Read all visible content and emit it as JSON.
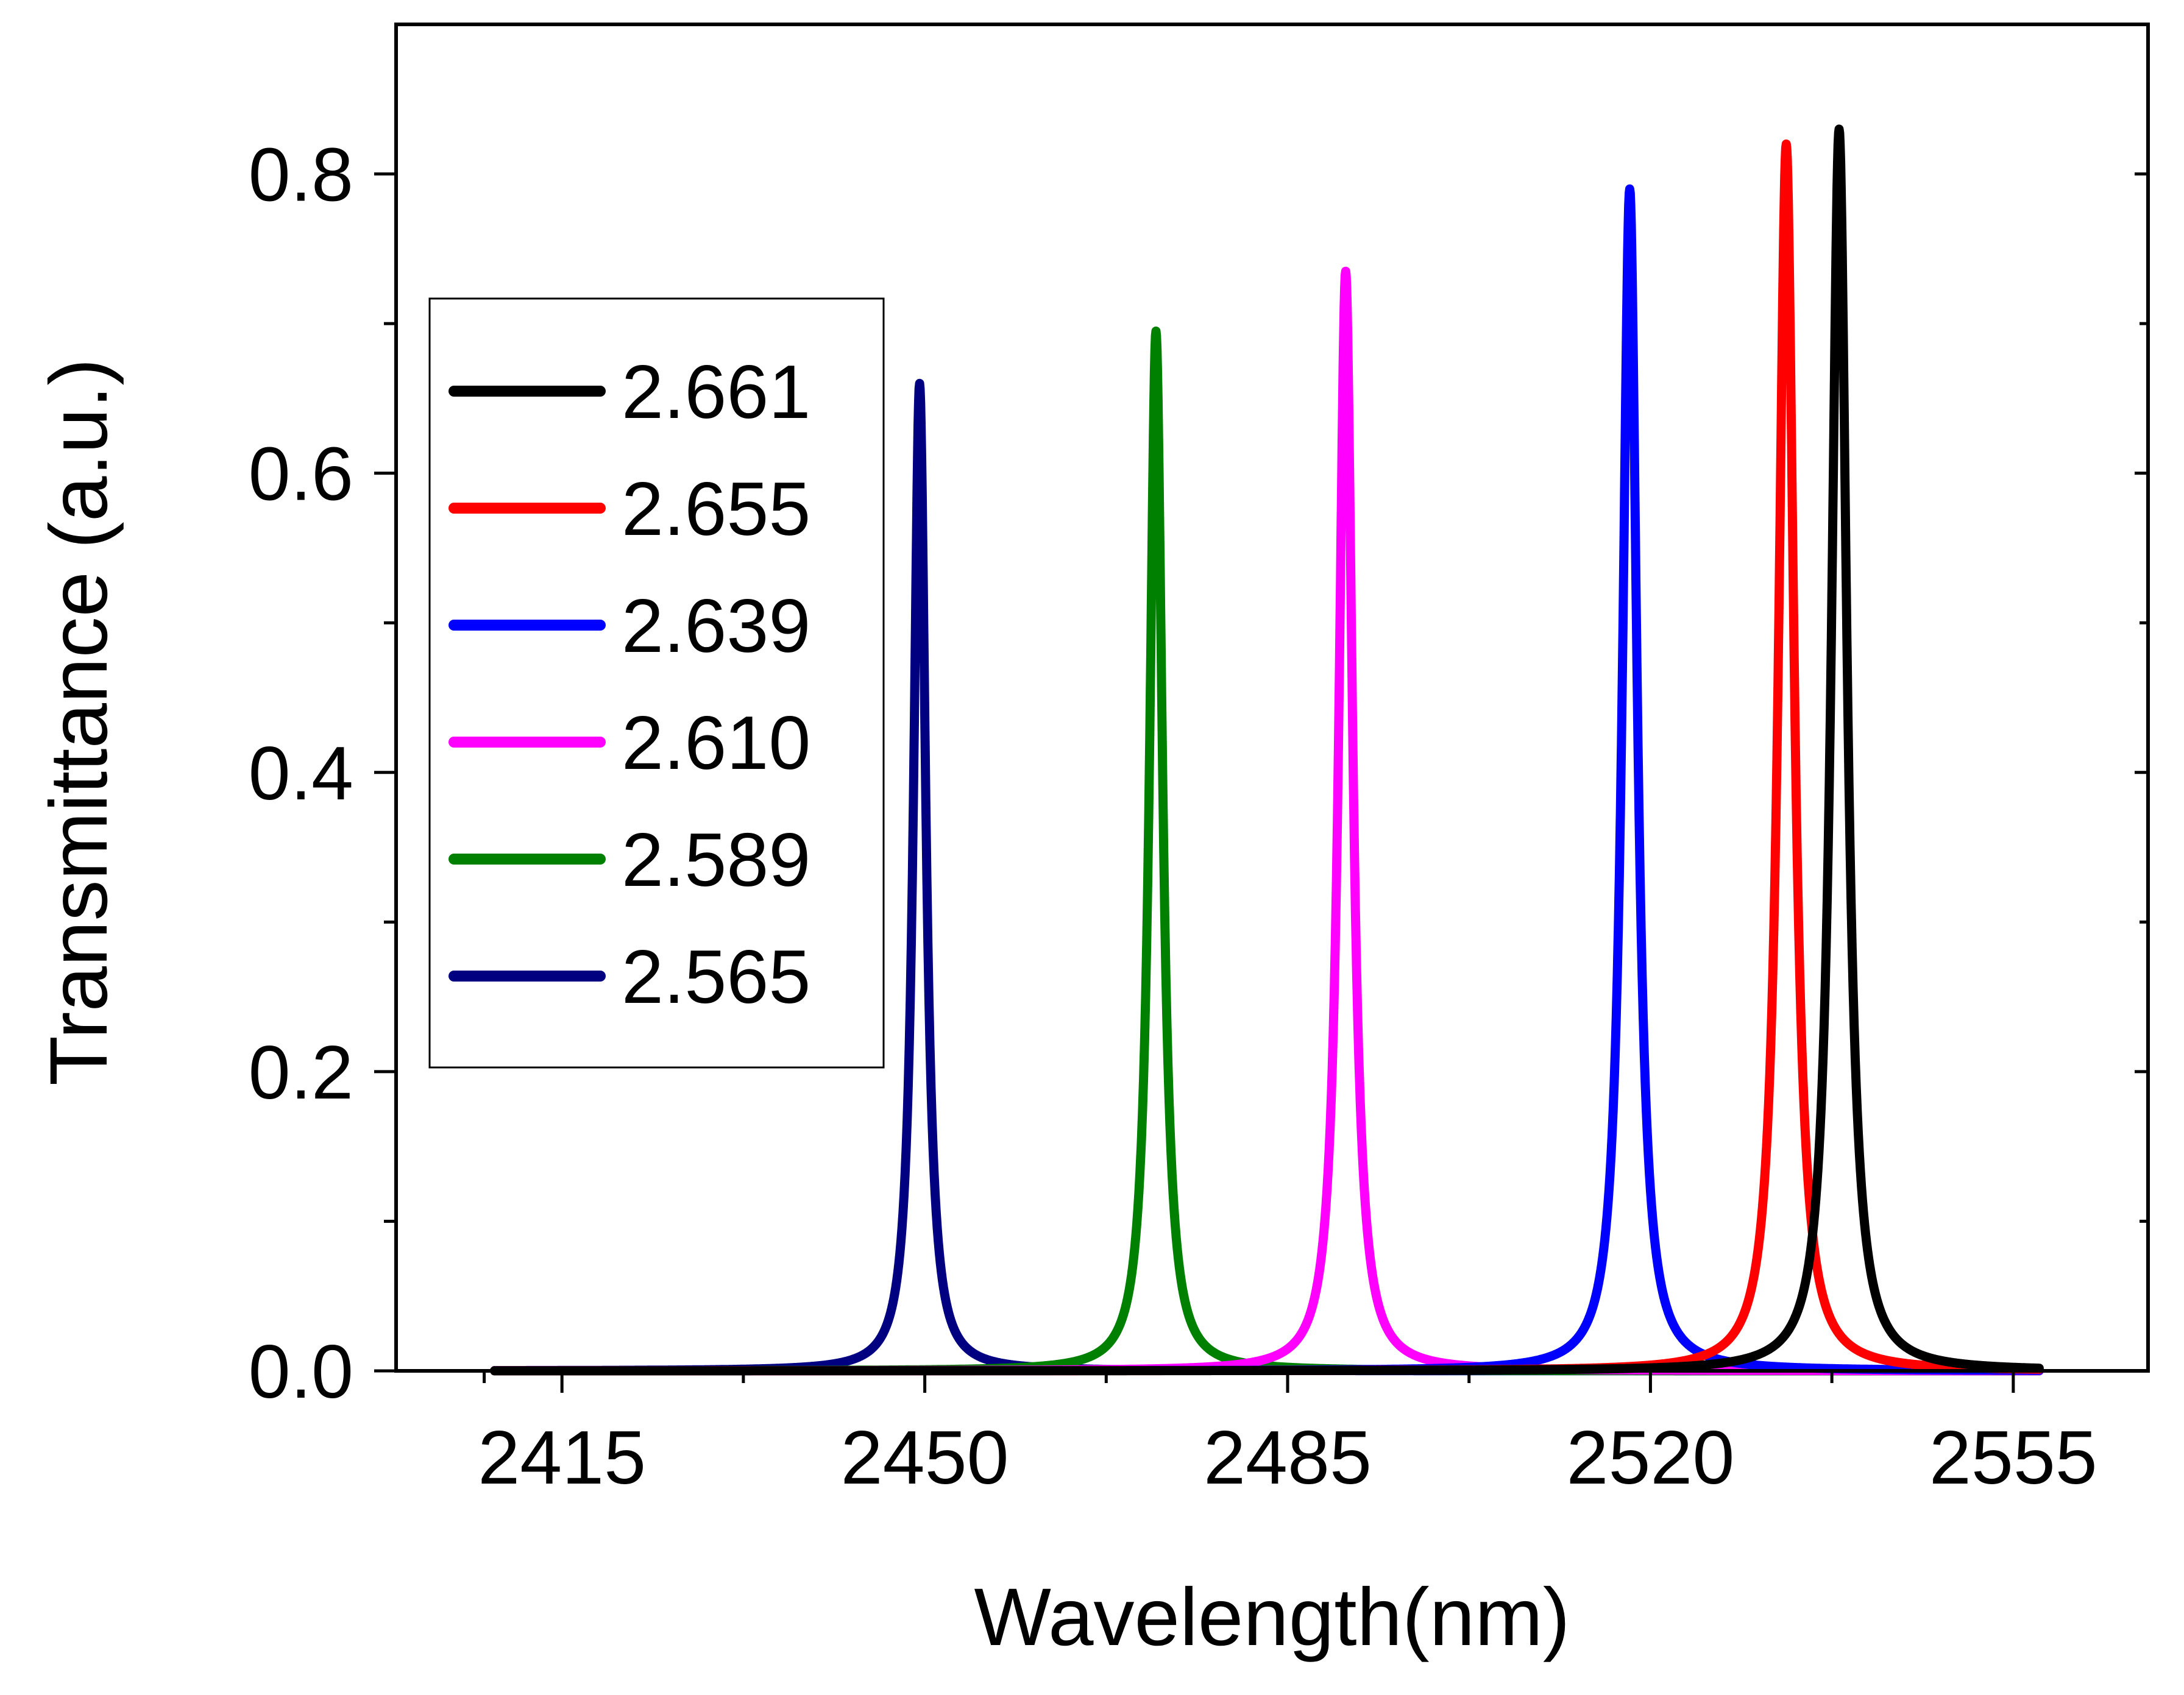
{
  "chart_data": {
    "type": "line",
    "title": "",
    "xlabel": "Wavelength(nm)",
    "ylabel": "Transmittance (a.u.)",
    "xlim": [
      2399,
      2568
    ],
    "ylim": [
      0,
      0.9
    ],
    "x_major_ticks": [
      2415,
      2450,
      2485,
      2520,
      2555
    ],
    "x_tick_labels": [
      "2415",
      "2450",
      "2485",
      "2520",
      "2555"
    ],
    "x_minor_ticks": [
      2407.5,
      2432.5,
      2467.5,
      2502.5,
      2537.5
    ],
    "y_major_ticks": [
      0,
      0.2,
      0.4,
      0.6,
      0.8
    ],
    "y_tick_labels": [
      "0.0",
      "0.2",
      "0.4",
      "0.6",
      "0.8"
    ],
    "y_minor_ticks": [
      0.1,
      0.3,
      0.5,
      0.7
    ],
    "x_range_plotted": [
      2408.5,
      2557.5
    ],
    "grid": false,
    "legend_position": "left-center",
    "series": [
      {
        "name": "2.661",
        "color": "#000000",
        "peak_x": 2538.2,
        "peak_y": 0.83,
        "half_width": 0.9
      },
      {
        "name": "2.655",
        "color": "#ff0000",
        "peak_x": 2533.1,
        "peak_y": 0.82,
        "half_width": 0.9
      },
      {
        "name": "2.639",
        "color": "#0000ff",
        "peak_x": 2518.0,
        "peak_y": 0.79,
        "half_width": 0.85
      },
      {
        "name": "2.610",
        "color": "#ff00ff",
        "peak_x": 2490.6,
        "peak_y": 0.735,
        "half_width": 0.8
      },
      {
        "name": "2.589",
        "color": "#008000",
        "peak_x": 2472.3,
        "peak_y": 0.695,
        "half_width": 0.75
      },
      {
        "name": "2.565",
        "color": "#000080",
        "peak_x": 2449.5,
        "peak_y": 0.66,
        "half_width": 0.7
      }
    ]
  }
}
